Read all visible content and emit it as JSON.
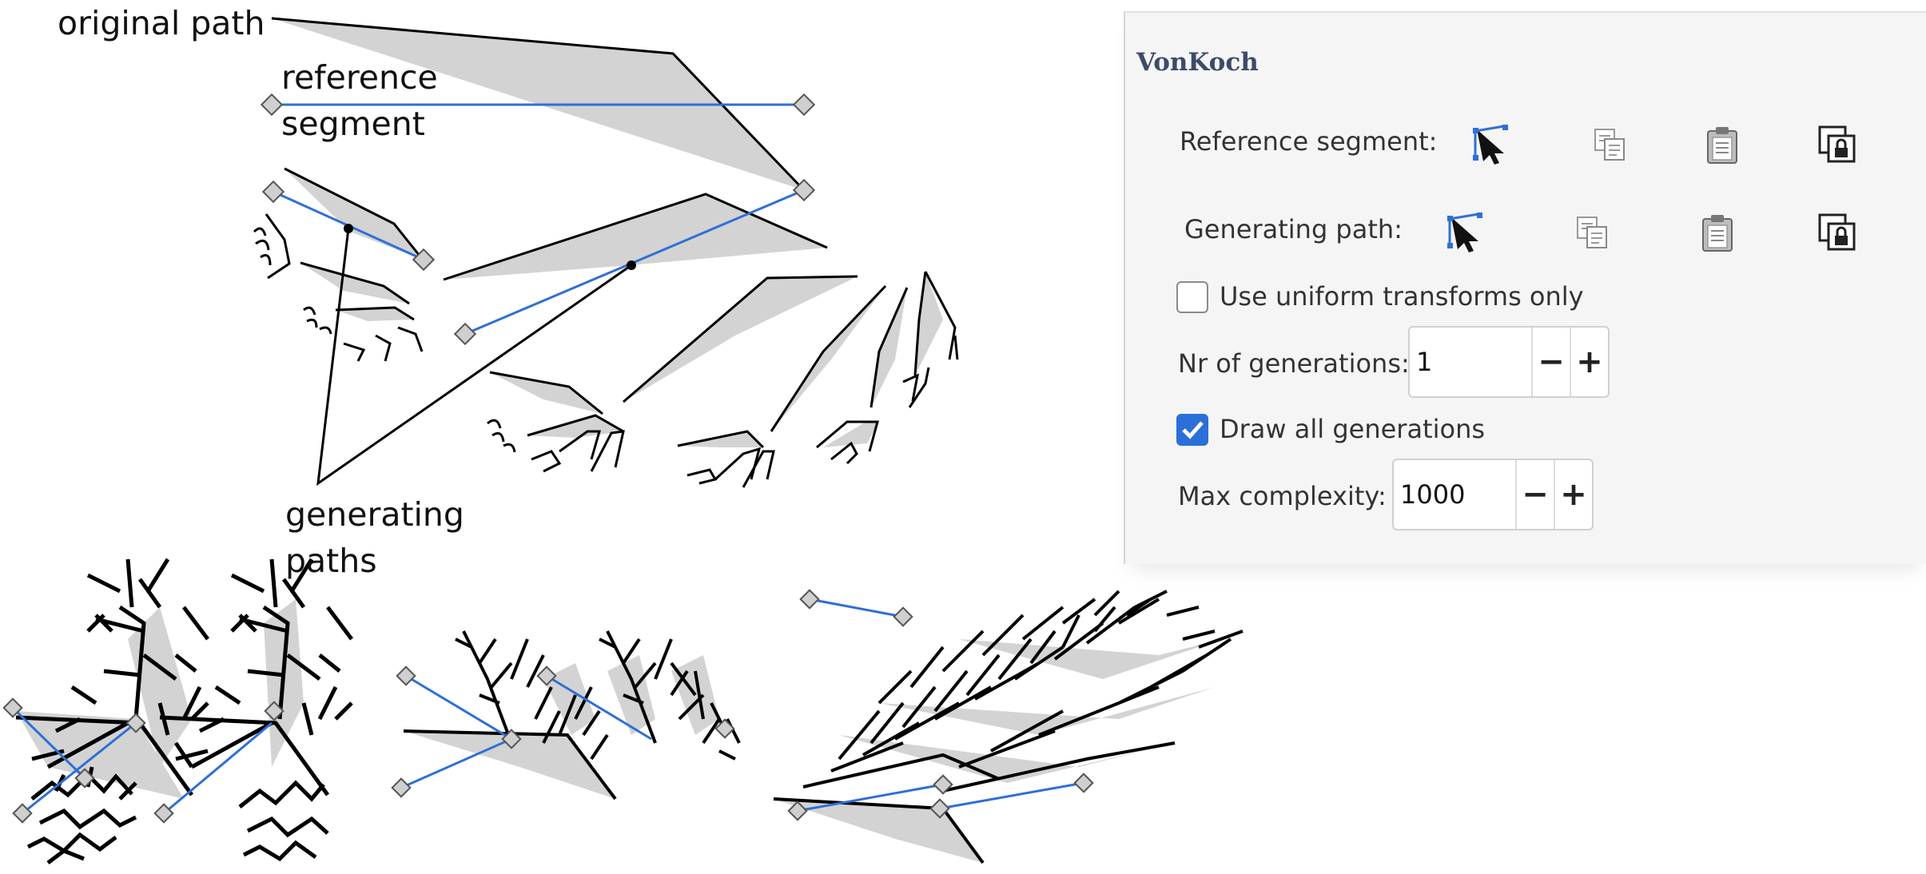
{
  "annotations": {
    "original_path": "original path",
    "reference_segment": "reference\nsegment",
    "generating_paths": "generating\npaths"
  },
  "panel": {
    "title": "VonKoch",
    "reference_segment_label": "Reference segment:",
    "generating_path_label": "Generating path:",
    "buttons": {
      "edit": "edit-on-canvas-icon",
      "copy": "copy-icon",
      "paste": "paste-icon",
      "link": "link-to-path-icon"
    },
    "uniform_transforms": {
      "label": "Use uniform transforms only",
      "checked": false
    },
    "nr_generations": {
      "label": "Nr of generations:",
      "value": "1"
    },
    "draw_all_generations": {
      "label": "Draw all generations",
      "checked": true
    },
    "max_complexity": {
      "label": "Max complexity:",
      "value": "1000"
    },
    "minus": "−",
    "plus": "+"
  },
  "colors": {
    "path_fill": "#d3d3d3",
    "stroke": "#000000",
    "helper_line": "#2f6fd6",
    "handle": "#cfcfcf",
    "accent": "#2b6fd9",
    "panel_title": "#3d4b67"
  }
}
